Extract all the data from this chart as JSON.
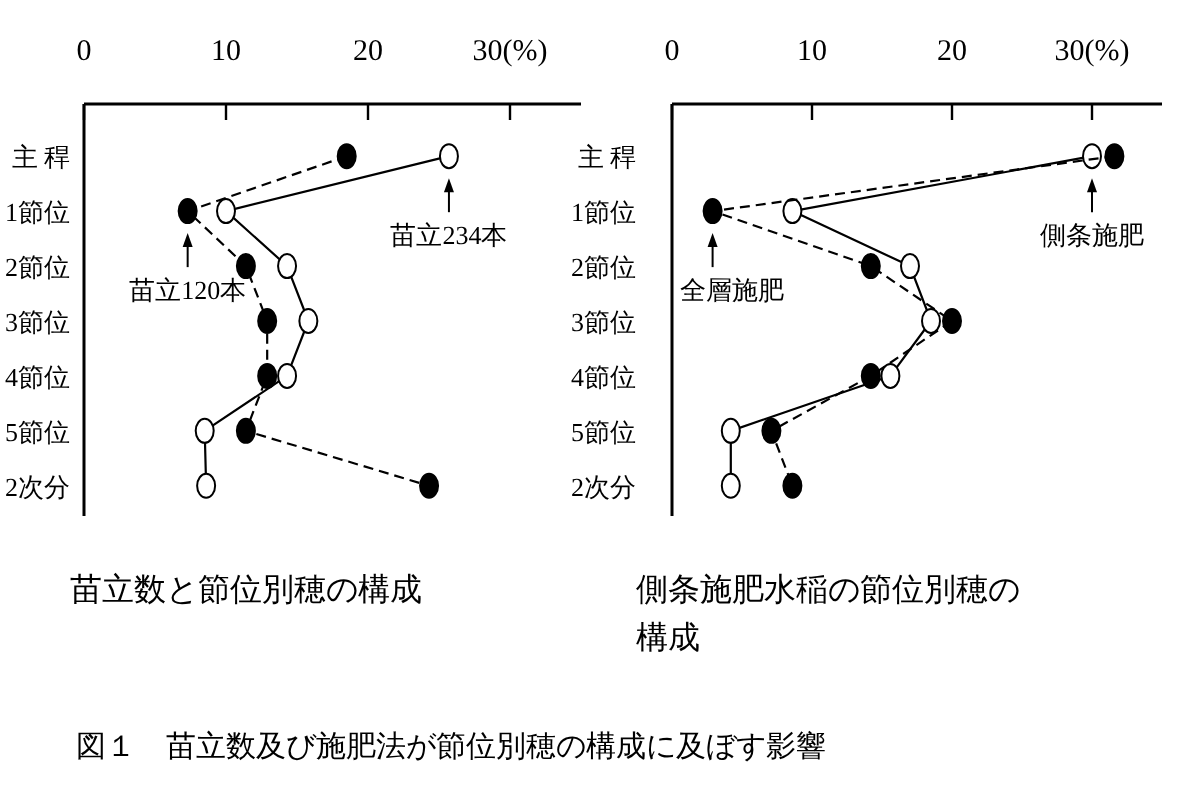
{
  "chart_data": [
    {
      "type": "line",
      "title": "苗立数と節位別穂の構成",
      "categories": [
        "主 稈",
        "1節位",
        "2節位",
        "3節位",
        "4節位",
        "5節位",
        "2次分"
      ],
      "orientation": "horizontal",
      "marker": "circle",
      "series": [
        {
          "color": "#ffffff",
          "line_style": "solid",
          "values": [
            25.7,
            10.0,
            14.3,
            15.8,
            14.3,
            8.5,
            8.6
          ]
        },
        {
          "color": "#000000",
          "line_style": "dashed",
          "values": [
            18.5,
            7.3,
            11.4,
            12.9,
            12.9,
            11.4,
            24.3
          ]
        }
      ],
      "xlim": [
        0,
        35
      ],
      "xticks": [
        0,
        10,
        20,
        {
          "value": 30,
          "label": "30(%)"
        }
      ],
      "annotations": [
        {
          "text": "苗立234本",
          "x": 25.7,
          "y": "主 稈"
        },
        {
          "text": "苗立120本",
          "x": 7.3,
          "y": "1節位"
        },
        "図１　苗立数及び施肥法が節位別穂の構成に及ぼす影響"
      ]
    },
    {
      "type": "line",
      "title": "側条施肥水稲の節位別穂の構成",
      "categories": [
        "主 稈",
        "1節位",
        "2節位",
        "3節位",
        "4節位",
        "5節位",
        "2次分"
      ],
      "orientation": "horizontal",
      "marker": "circle",
      "series": [
        {
          "color": "#ffffff",
          "line_style": "solid",
          "values": [
            30.0,
            8.6,
            17.0,
            18.5,
            15.6,
            4.2,
            4.2
          ]
        },
        {
          "color": "#000000",
          "line_style": "dashed",
          "values": [
            31.6,
            2.9,
            14.2,
            20.0,
            14.2,
            7.1,
            8.6
          ]
        }
      ],
      "xlim": [
        0,
        35
      ],
      "xticks": [
        0,
        10,
        20,
        {
          "value": 30,
          "label": "30(%)"
        }
      ],
      "annotations": [
        {
          "text": "側条施肥",
          "x": 30.0,
          "y": "主 稈"
        },
        {
          "text": "全層施肥",
          "x": 2.9,
          "y": "1節位"
        }
      ]
    }
  ]
}
